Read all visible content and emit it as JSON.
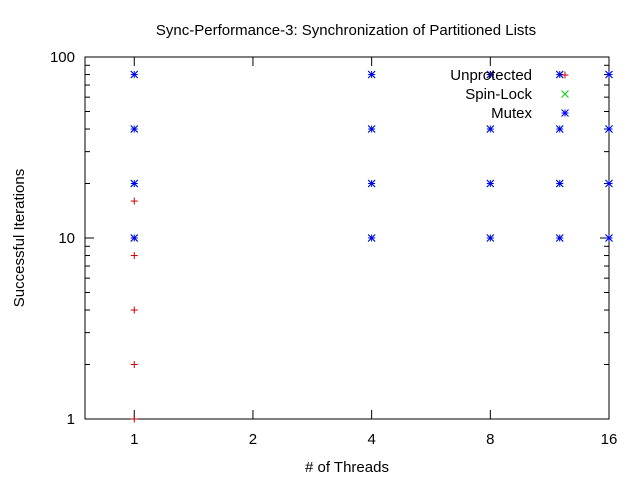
{
  "chart_data": {
    "type": "scatter",
    "title": "Sync-Performance-3: Synchronization of Partitioned Lists",
    "xlabel": "# of Threads",
    "ylabel": "Successful Iterations",
    "x_scale": "log2",
    "y_scale": "log10",
    "xlim": [
      0.75,
      16
    ],
    "ylim": [
      1,
      100
    ],
    "x_ticks": [
      1,
      2,
      4,
      8,
      16
    ],
    "x_tick_labels": [
      "1",
      "2",
      "4",
      "8",
      "16"
    ],
    "y_ticks": [
      1,
      10,
      100
    ],
    "y_tick_labels": [
      "1",
      "10",
      "100"
    ],
    "grid": false,
    "legend_position": "top-right",
    "series": [
      {
        "name": "Unprotected",
        "color": "#cc0000",
        "marker": "plus",
        "points": [
          [
            1,
            1
          ],
          [
            1,
            2
          ],
          [
            1,
            4
          ],
          [
            1,
            8
          ],
          [
            1,
            16
          ],
          [
            8,
            80
          ]
        ]
      },
      {
        "name": "Spin-Lock",
        "color": "#00cc00",
        "marker": "cross",
        "points": [
          [
            1,
            10
          ],
          [
            1,
            20
          ],
          [
            1,
            40
          ],
          [
            1,
            80
          ],
          [
            4,
            10
          ],
          [
            4,
            20
          ],
          [
            4,
            40
          ],
          [
            4,
            80
          ],
          [
            8,
            10
          ],
          [
            8,
            20
          ],
          [
            8,
            40
          ],
          [
            8,
            80
          ],
          [
            12,
            10
          ],
          [
            12,
            20
          ],
          [
            12,
            40
          ],
          [
            12,
            80
          ],
          [
            16,
            10
          ],
          [
            16,
            20
          ],
          [
            16,
            40
          ],
          [
            16,
            80
          ]
        ]
      },
      {
        "name": "Mutex",
        "color": "#0000ee",
        "marker": "star",
        "points": [
          [
            1,
            10
          ],
          [
            1,
            20
          ],
          [
            1,
            40
          ],
          [
            1,
            80
          ],
          [
            4,
            10
          ],
          [
            4,
            20
          ],
          [
            4,
            40
          ],
          [
            4,
            80
          ],
          [
            8,
            10
          ],
          [
            8,
            20
          ],
          [
            8,
            40
          ],
          [
            8,
            80
          ],
          [
            12,
            10
          ],
          [
            12,
            20
          ],
          [
            12,
            40
          ],
          [
            12,
            80
          ],
          [
            16,
            10
          ],
          [
            16,
            20
          ],
          [
            16,
            40
          ],
          [
            16,
            80
          ]
        ]
      }
    ]
  }
}
